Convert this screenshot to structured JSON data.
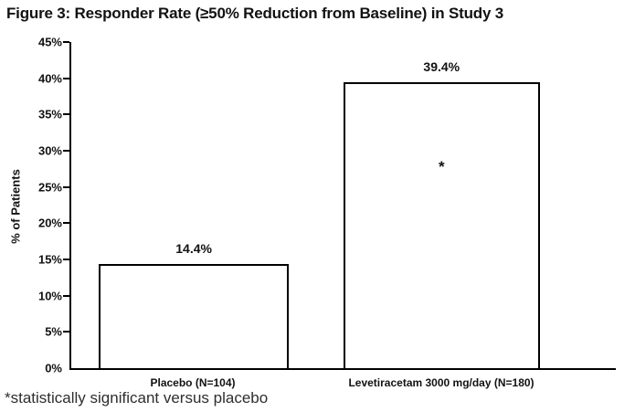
{
  "title": "Figure 3: Responder Rate (≥50% Reduction from Baseline) in Study 3",
  "footnote": "*statistically significant versus placebo",
  "colors": {
    "background": "#ffffff",
    "text": "#121212",
    "axis": "#000000",
    "bar_fill": "#ffffff",
    "bar_border": "#000000"
  },
  "chart_data": {
    "type": "bar",
    "title": "Figure 3: Responder Rate (≥50% Reduction from Baseline) in Study 3",
    "xlabel": "",
    "ylabel": "% of Patients",
    "ylim": [
      0,
      45
    ],
    "ytick_step": 5,
    "ytick_labels": [
      "0%",
      "5%",
      "10%",
      "15%",
      "20%",
      "25%",
      "30%",
      "35%",
      "40%",
      "45%"
    ],
    "categories": [
      "Placebo (N=104)",
      "Levetiracetam 3000 mg/day (N=180)"
    ],
    "values": [
      14.4,
      39.4
    ],
    "value_labels": [
      "14.4%",
      "39.4%"
    ],
    "annotations": [
      {
        "bar_index": 1,
        "text": "*",
        "y_value": 26.5
      }
    ],
    "grid": false,
    "legend": false,
    "bar_style": "outlined-white"
  }
}
